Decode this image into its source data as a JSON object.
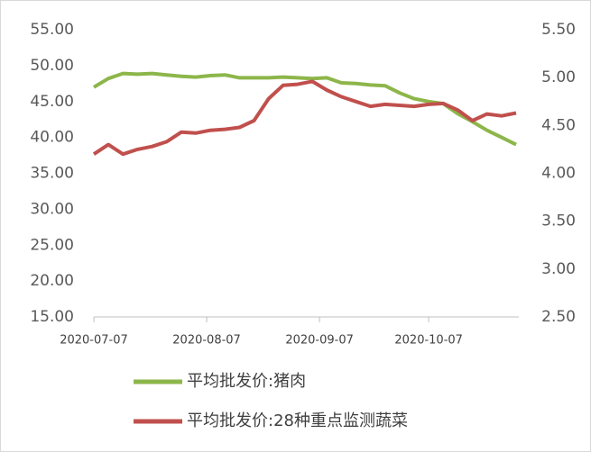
{
  "chart_data": {
    "type": "line",
    "x": [
      "2020-07-07",
      "2020-07-11",
      "2020-07-15",
      "2020-07-19",
      "2020-07-23",
      "2020-07-27",
      "2020-07-31",
      "2020-08-04",
      "2020-08-08",
      "2020-08-12",
      "2020-08-16",
      "2020-08-20",
      "2020-08-24",
      "2020-08-28",
      "2020-09-01",
      "2020-09-05",
      "2020-09-09",
      "2020-09-13",
      "2020-09-17",
      "2020-09-21",
      "2020-09-25",
      "2020-09-29",
      "2020-10-03",
      "2020-10-07",
      "2020-10-11",
      "2020-10-15",
      "2020-10-19",
      "2020-10-23",
      "2020-10-27",
      "2020-10-31"
    ],
    "series": [
      {
        "name": "平均批发价:猪肉",
        "color": "#8db64a",
        "axis": "y",
        "values": [
          47.0,
          48.2,
          48.9,
          48.8,
          48.9,
          48.7,
          48.5,
          48.4,
          48.6,
          48.7,
          48.3,
          48.3,
          48.3,
          48.4,
          48.3,
          48.2,
          48.3,
          47.6,
          47.5,
          47.3,
          47.2,
          46.2,
          45.4,
          45.0,
          44.7,
          43.3,
          42.2,
          41.0,
          40.0,
          39.0
        ]
      },
      {
        "name": "平均批发价:28种重点监测蔬菜",
        "color": "#c0504d",
        "axis": "y2",
        "values": [
          4.2,
          4.3,
          4.2,
          4.25,
          4.28,
          4.33,
          4.43,
          4.42,
          4.45,
          4.46,
          4.48,
          4.55,
          4.78,
          4.92,
          4.93,
          4.96,
          4.87,
          4.8,
          4.75,
          4.7,
          4.72,
          4.71,
          4.7,
          4.72,
          4.73,
          4.66,
          4.55,
          4.62,
          4.6,
          4.63
        ]
      }
    ],
    "xlim": [
      "2020-07-07",
      "2020-10-31"
    ],
    "xticks": [
      "2020-07-07",
      "2020-08-07",
      "2020-09-07",
      "2020-10-07"
    ],
    "ylim": [
      15,
      55
    ],
    "yticks": [
      {
        "value": 15,
        "label": "15.00"
      },
      {
        "value": 20,
        "label": "20.00"
      },
      {
        "value": 25,
        "label": "25.00"
      },
      {
        "value": 30,
        "label": "30.00"
      },
      {
        "value": 35,
        "label": "35.00"
      },
      {
        "value": 40,
        "label": "40.00"
      },
      {
        "value": 45,
        "label": "45.00"
      },
      {
        "value": 50,
        "label": "50.00"
      },
      {
        "value": 55,
        "label": "55.00"
      }
    ],
    "y2lim": [
      2.5,
      5.5
    ],
    "y2ticks": [
      {
        "value": 2.5,
        "label": "2.50"
      },
      {
        "value": 3,
        "label": "3.00"
      },
      {
        "value": 3.5,
        "label": "3.50"
      },
      {
        "value": 4,
        "label": "4.00"
      },
      {
        "value": 4.5,
        "label": "4.50"
      },
      {
        "value": 5,
        "label": "5.00"
      },
      {
        "value": 5.5,
        "label": "5.50"
      }
    ],
    "grid": false
  }
}
